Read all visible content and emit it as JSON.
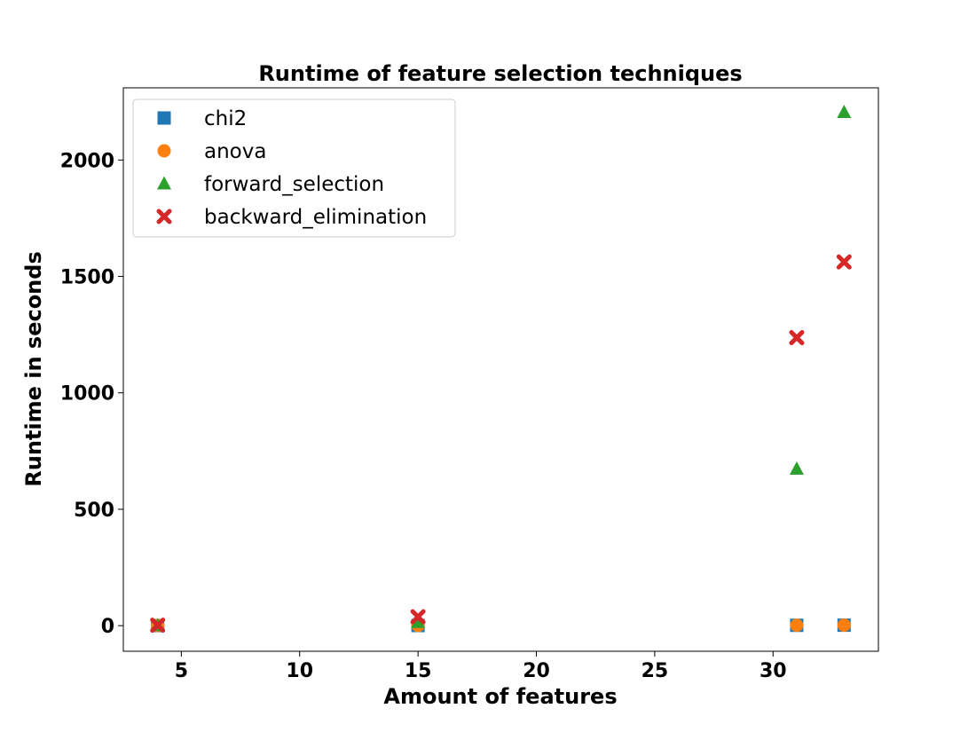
{
  "chart_data": {
    "type": "scatter",
    "title": "Runtime of feature selection techniques",
    "xlabel": "Amount of features",
    "ylabel": "Runtime in seconds",
    "xlim": [
      2.55,
      34.45
    ],
    "ylim": [
      -110,
      2310
    ],
    "xticks": [
      5,
      10,
      15,
      20,
      25,
      30
    ],
    "yticks": [
      0,
      500,
      1000,
      1500,
      2000
    ],
    "legend_position": "top-left",
    "series": [
      {
        "name": "chi2",
        "marker": "square",
        "color": "#1f77b4",
        "x": [
          4,
          15,
          31,
          33
        ],
        "y": [
          0.3,
          0.5,
          1.5,
          2
        ]
      },
      {
        "name": "anova",
        "marker": "circle",
        "color": "#ff7f0e",
        "x": [
          4,
          15,
          31,
          33
        ],
        "y": [
          0.3,
          0.6,
          1.5,
          2
        ]
      },
      {
        "name": "forward_selection",
        "marker": "triangle",
        "color": "#2ca02c",
        "x": [
          4,
          15,
          31,
          33
        ],
        "y": [
          1,
          15,
          673,
          2205
        ]
      },
      {
        "name": "backward_elimination",
        "marker": "x",
        "color": "#d62728",
        "x": [
          4,
          15,
          31,
          33
        ],
        "y": [
          2,
          38,
          1237,
          1562
        ]
      }
    ]
  }
}
